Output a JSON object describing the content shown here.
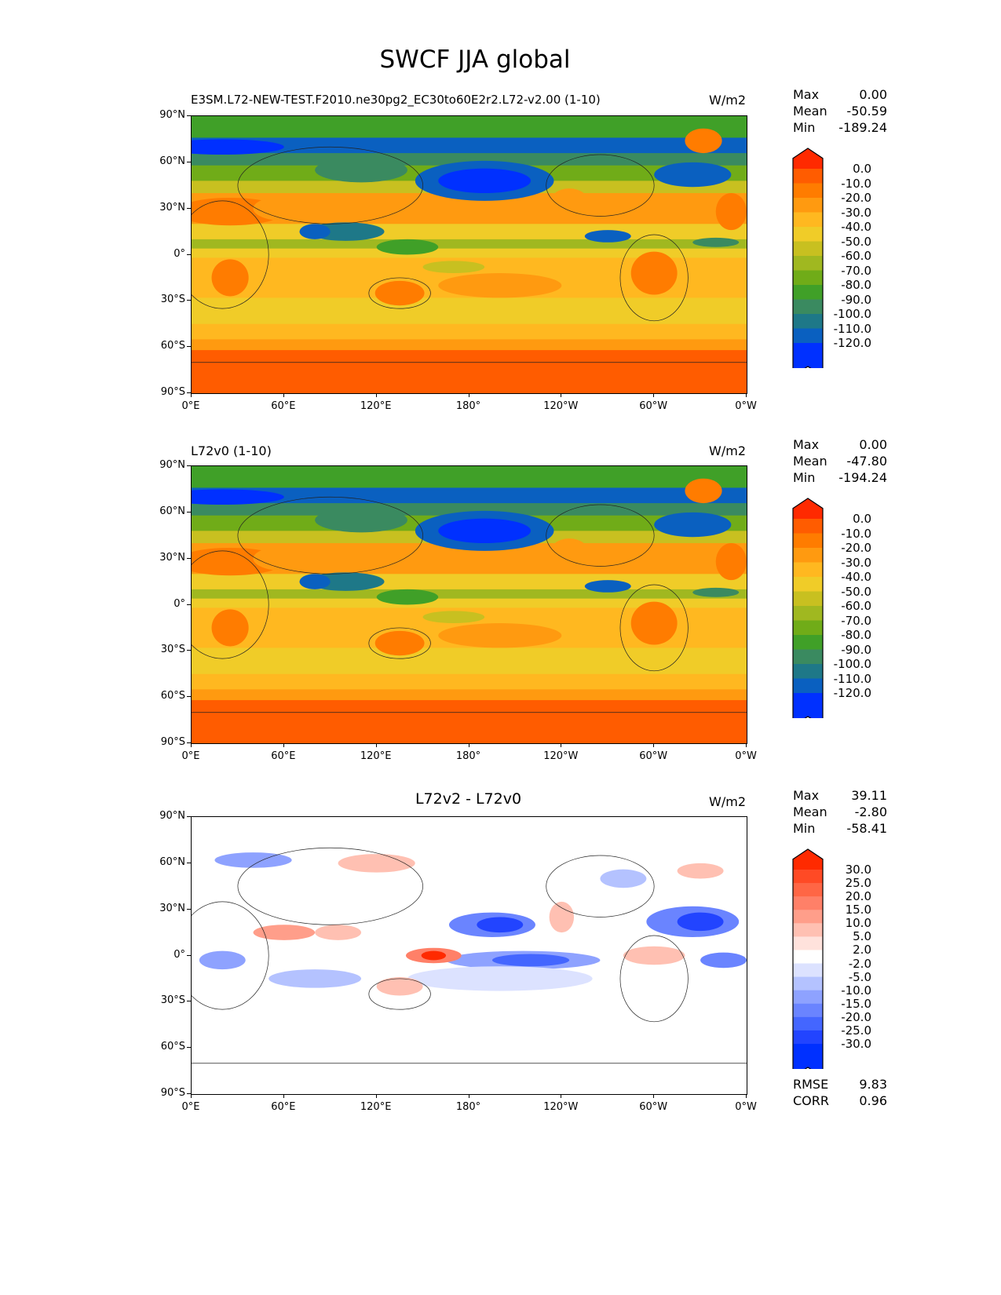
{
  "title": "SWCF JJA global",
  "chart_data": [
    {
      "type": "heatmap",
      "title": "E3SM.L72-NEW-TEST.F2010.ne30pg2_EC30to60E2r2.L72-v2.00 (1-10)",
      "units": "W/m2",
      "stats": {
        "Max": "0.00",
        "Mean": "-50.59",
        "Min": "-189.24"
      },
      "levels": [
        "0.0",
        "-10.0",
        "-20.0",
        "-30.0",
        "-40.0",
        "-50.0",
        "-60.0",
        "-70.0",
        "-80.0",
        "-90.0",
        "-100.0",
        "-110.0",
        "-120.0"
      ],
      "colors": [
        "#ff2a00",
        "#ff5c00",
        "#ff7c00",
        "#ff9a10",
        "#ffb820",
        "#f0cc28",
        "#c8c020",
        "#a0b820",
        "#70ac18",
        "#40a028",
        "#3a8a60",
        "#1e7888",
        "#0a60c0",
        "#0030ff"
      ],
      "xlabels": [
        "0°E",
        "60°E",
        "120°E",
        "180°",
        "120°W",
        "60°W",
        "0°W"
      ],
      "ylabels": [
        "90°N",
        "60°N",
        "30°N",
        "0°",
        "30°S",
        "60°S",
        "90°S"
      ]
    },
    {
      "type": "heatmap",
      "title": "L72v0 (1-10)",
      "units": "W/m2",
      "stats": {
        "Max": "0.00",
        "Mean": "-47.80",
        "Min": "-194.24"
      },
      "levels": [
        "0.0",
        "-10.0",
        "-20.0",
        "-30.0",
        "-40.0",
        "-50.0",
        "-60.0",
        "-70.0",
        "-80.0",
        "-90.0",
        "-100.0",
        "-110.0",
        "-120.0"
      ],
      "colors": [
        "#ff2a00",
        "#ff5c00",
        "#ff7c00",
        "#ff9a10",
        "#ffb820",
        "#f0cc28",
        "#c8c020",
        "#a0b820",
        "#70ac18",
        "#40a028",
        "#3a8a60",
        "#1e7888",
        "#0a60c0",
        "#0030ff"
      ],
      "xlabels": [
        "0°E",
        "60°E",
        "120°E",
        "180°",
        "120°W",
        "60°W",
        "0°W"
      ],
      "ylabels": [
        "90°N",
        "60°N",
        "30°N",
        "0°",
        "30°S",
        "60°S",
        "90°S"
      ]
    },
    {
      "type": "heatmap",
      "title": "L72v2 - L72v0",
      "units": "W/m2",
      "stats": {
        "Max": "39.11",
        "Mean": "-2.80",
        "Min": "-58.41"
      },
      "extra_stats": {
        "RMSE": "9.83",
        "CORR": "0.96"
      },
      "levels": [
        "30.0",
        "25.0",
        "20.0",
        "15.0",
        "10.0",
        "5.0",
        "2.0",
        "-2.0",
        "-5.0",
        "-10.0",
        "-15.0",
        "-20.0",
        "-25.0",
        "-30.0"
      ],
      "colors": [
        "#ff2a00",
        "#ff4a25",
        "#ff6645",
        "#ff8068",
        "#ff9e8a",
        "#ffc0b2",
        "#ffe2dc",
        "#ffffff",
        "#dce2ff",
        "#b4c2ff",
        "#8ea2ff",
        "#6a84ff",
        "#4466ff",
        "#2244ff",
        "#0030ff"
      ],
      "xlabels": [
        "0°E",
        "60°E",
        "120°E",
        "180°",
        "120°W",
        "60°W",
        "0°W"
      ],
      "ylabels": [
        "90°N",
        "60°N",
        "30°N",
        "0°",
        "30°S",
        "60°S",
        "90°S"
      ]
    }
  ]
}
